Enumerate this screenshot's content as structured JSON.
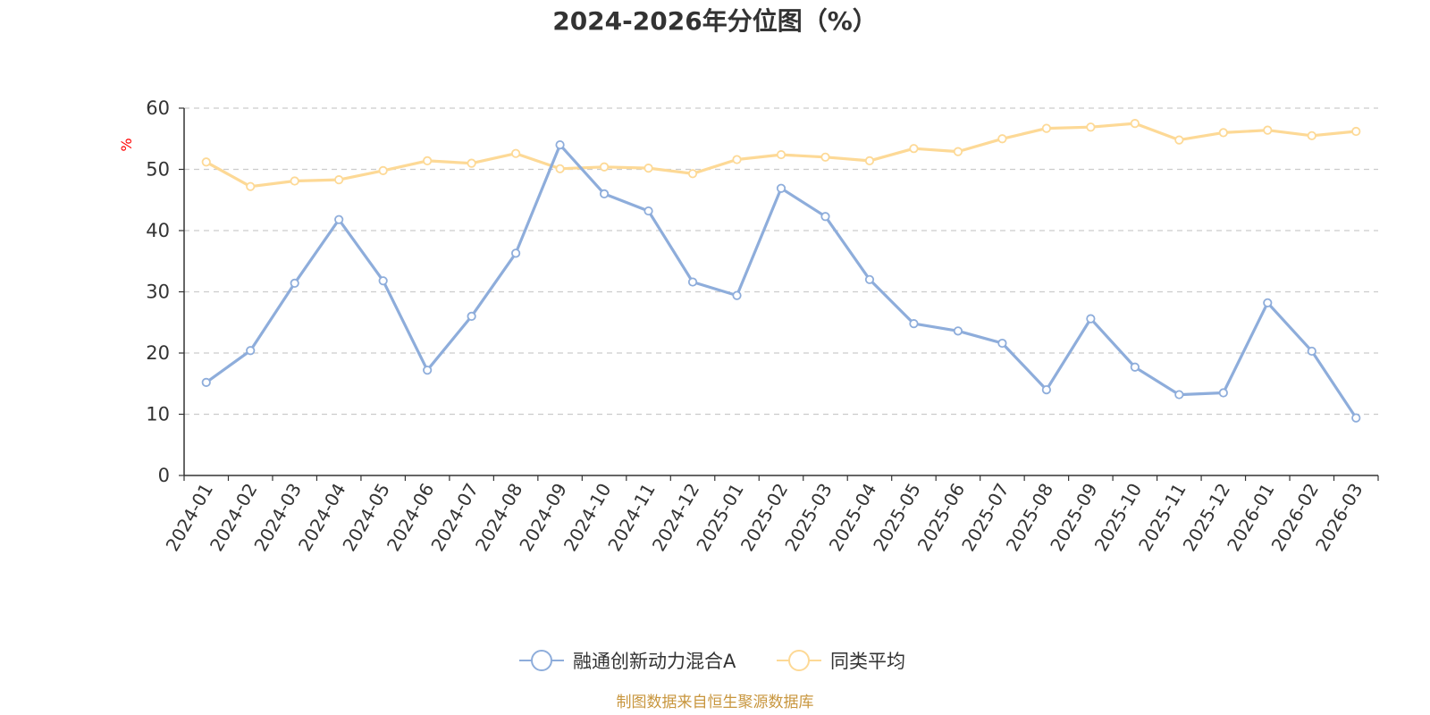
{
  "chart_data": {
    "type": "line",
    "title": "2024-2026年分位图（%）",
    "ylabel": "%",
    "xlabel": "",
    "ylim": [
      0,
      60
    ],
    "yticks": [
      0,
      10,
      20,
      30,
      40,
      50,
      60
    ],
    "grid": true,
    "legend_position": "bottom-center",
    "categories": [
      "2024-01",
      "2024-02",
      "2024-03",
      "2024-04",
      "2024-05",
      "2024-06",
      "2024-07",
      "2024-08",
      "2024-09",
      "2024-10",
      "2024-11",
      "2024-12",
      "2025-01",
      "2025-02",
      "2025-03",
      "2025-04",
      "2025-05",
      "2025-06",
      "2025-07",
      "2025-08",
      "2025-09",
      "2025-10",
      "2025-11",
      "2025-12",
      "2026-01",
      "2026-02",
      "2026-03"
    ],
    "series": [
      {
        "name": "融通创新动力混合A",
        "color": "#8eaddb",
        "values": [
          15.2,
          20.4,
          31.4,
          41.8,
          31.8,
          17.2,
          26.0,
          36.3,
          54.0,
          46.0,
          43.2,
          31.6,
          29.4,
          46.9,
          42.3,
          32.0,
          24.8,
          23.6,
          21.6,
          14.0,
          25.6,
          17.7,
          13.2,
          13.5,
          28.2,
          20.3,
          9.4
        ]
      },
      {
        "name": "同类平均",
        "color": "#fdd996",
        "values": [
          51.2,
          47.2,
          48.1,
          48.3,
          49.8,
          51.4,
          51.0,
          52.6,
          50.1,
          50.4,
          50.2,
          49.3,
          51.6,
          52.4,
          52.0,
          51.4,
          53.4,
          52.9,
          55.0,
          56.7,
          56.9,
          57.5,
          54.8,
          56.0,
          56.4,
          55.5,
          56.2
        ]
      }
    ],
    "source": "制图数据来自恒生聚源数据库"
  }
}
